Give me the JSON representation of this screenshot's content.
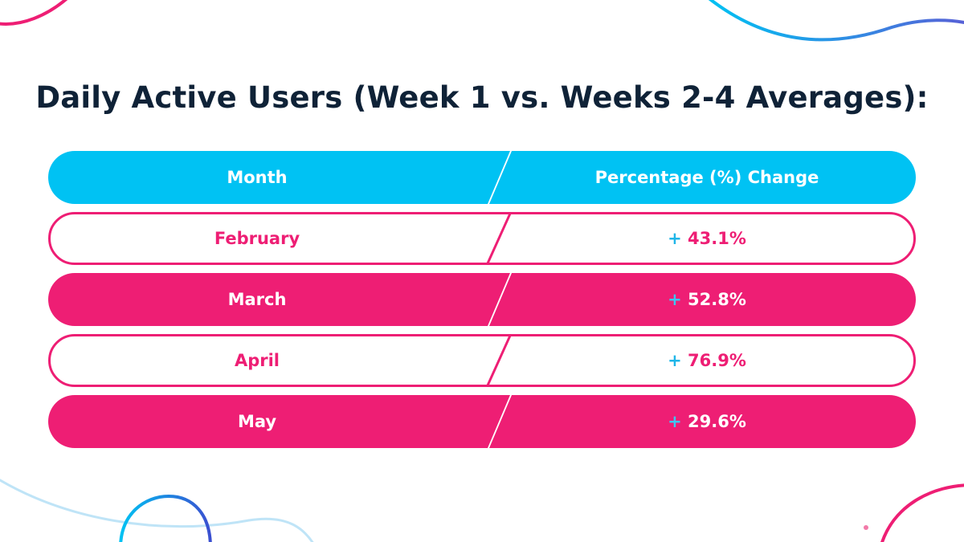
{
  "chart_data": {
    "type": "table",
    "title": "Daily Active Users (Week 1 vs. Weeks 2-4 Averages):",
    "columns": [
      "Month",
      "Percentage (%) Change"
    ],
    "rows": [
      {
        "month": "February",
        "sign": "+",
        "change": "43.1%",
        "value": 43.1,
        "style": "outline"
      },
      {
        "month": "March",
        "sign": "+",
        "change": "52.8%",
        "value": 52.8,
        "style": "filled"
      },
      {
        "month": "April",
        "sign": "+",
        "change": "76.9%",
        "value": 76.9,
        "style": "outline"
      },
      {
        "month": "May",
        "sign": "+",
        "change": "29.6%",
        "value": 29.6,
        "style": "filled"
      }
    ]
  },
  "colors": {
    "header": "#00c2f3",
    "accent": "#ee1e74",
    "sign": "#1fb6e8",
    "title": "#0f2237",
    "white": "#ffffff"
  }
}
